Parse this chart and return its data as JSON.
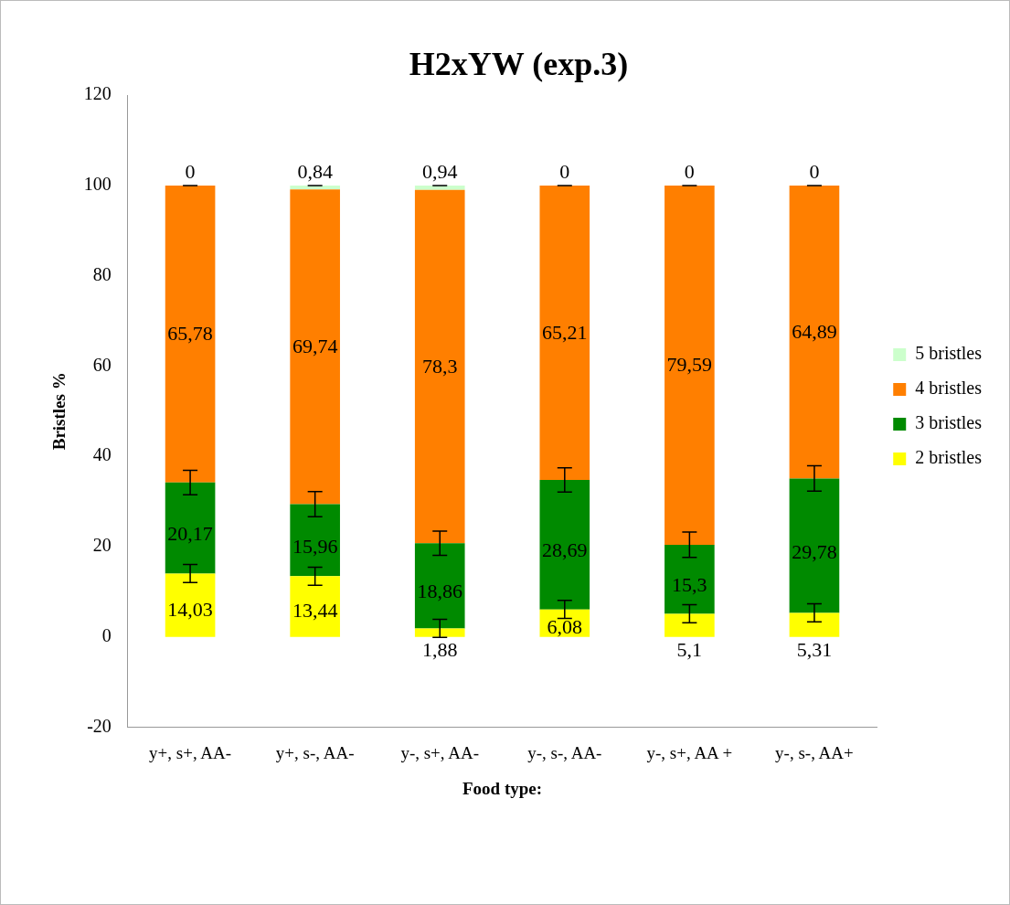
{
  "chart_data": {
    "type": "bar",
    "title": "H2xYW (exp.3)",
    "xlabel": "Food type:",
    "ylabel": "Bristles %",
    "categories": [
      "y+, s+, AA-",
      "y+, s-, AA-",
      "y-, s+, AA-",
      "y-, s-, AA-",
      "y-, s+, AA +",
      "y-, s-, AA+"
    ],
    "stacked": true,
    "ylim": [
      -20,
      120
    ],
    "yticks": [
      -20,
      0,
      20,
      40,
      60,
      80,
      100,
      120
    ],
    "grid": false,
    "legend": "right",
    "series": [
      {
        "name": "2 bristles",
        "color": "#ffff00",
        "values": [
          14.03,
          13.44,
          1.88,
          6.08,
          5.1,
          5.31
        ],
        "value_labels": [
          "14,03",
          "13,44",
          "1,88",
          "6,08",
          "5,1",
          "5,31"
        ],
        "errors": [
          2,
          2,
          2,
          2,
          2,
          2
        ]
      },
      {
        "name": "3 bristles",
        "color": "#008a00",
        "values": [
          20.17,
          15.96,
          18.86,
          28.69,
          15.3,
          29.78
        ],
        "value_labels": [
          "20,17",
          "15,96",
          "18,86",
          "28,69",
          "15,3",
          "29,78"
        ],
        "errors": [
          2.7,
          2.8,
          2.7,
          2.7,
          2.8,
          2.8
        ]
      },
      {
        "name": "4 bristles",
        "color": "#ff7f00",
        "values": [
          65.78,
          69.74,
          78.3,
          65.21,
          79.59,
          64.89
        ],
        "value_labels": [
          "65,78",
          "69,74",
          "78,3",
          "65,21",
          "79,59",
          "64,89"
        ]
      },
      {
        "name": "5 bristles",
        "color": "#ccffcc",
        "values": [
          0,
          0.84,
          0.94,
          0,
          0,
          0
        ],
        "value_labels": [
          "0",
          "0,84",
          "0,94",
          "0",
          "0",
          "0"
        ],
        "errors": [
          0,
          0,
          0,
          0,
          0,
          0
        ]
      }
    ]
  }
}
